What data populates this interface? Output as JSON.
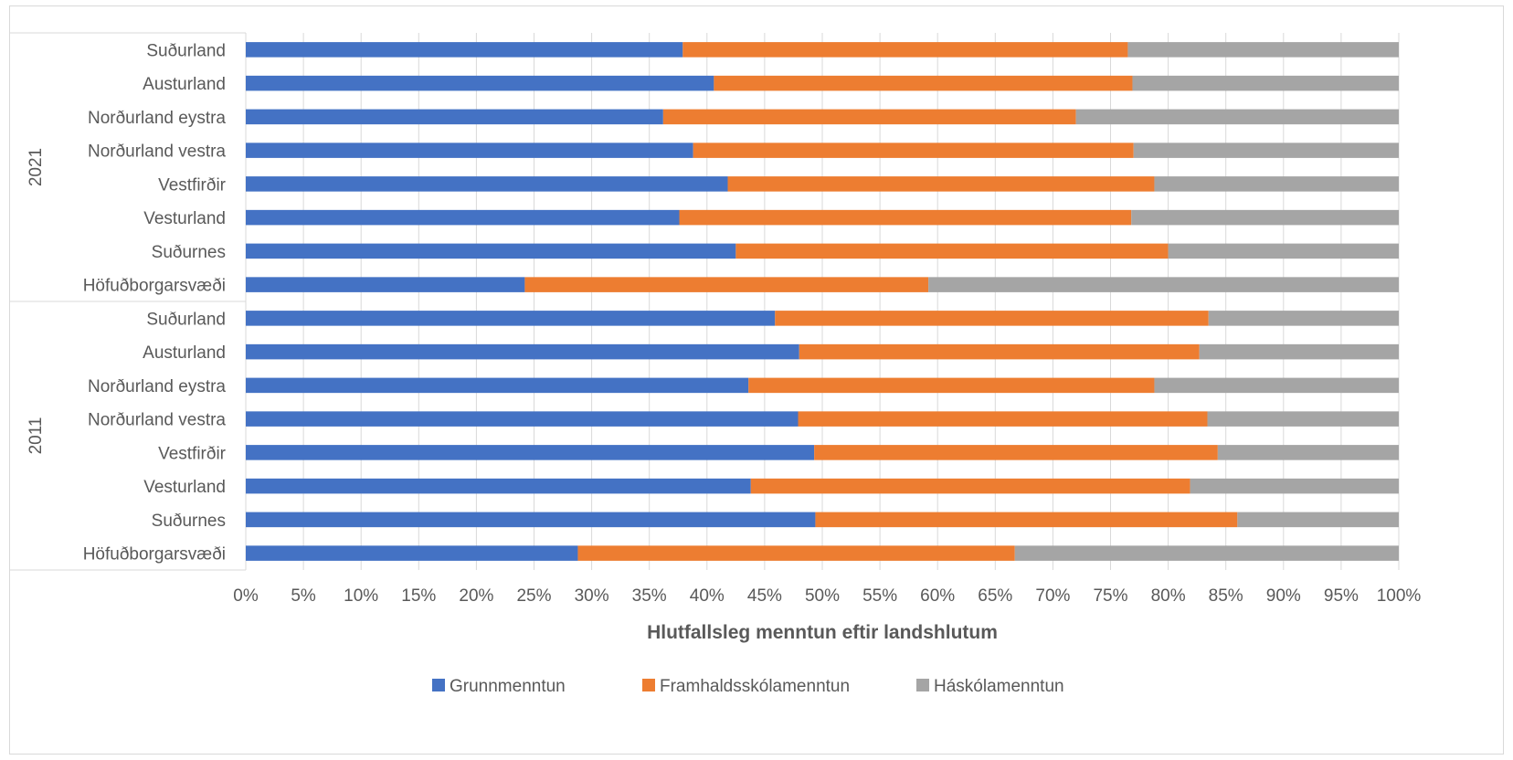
{
  "chart_data": {
    "type": "bar",
    "orientation": "horizontal",
    "stacked": true,
    "percent_stacked": true,
    "title": "",
    "xlabel": "Hlutfallsleg menntun eftir landshlutum",
    "ylabel": "",
    "xlim": [
      0,
      100
    ],
    "x_ticks": [
      "0%",
      "5%",
      "10%",
      "15%",
      "20%",
      "25%",
      "30%",
      "35%",
      "40%",
      "45%",
      "50%",
      "55%",
      "60%",
      "65%",
      "70%",
      "75%",
      "80%",
      "85%",
      "90%",
      "95%",
      "100%"
    ],
    "grid": true,
    "legend_position": "bottom",
    "groups": [
      {
        "name": "2021",
        "categories": [
          "Suðurland",
          "Austurland",
          "Norðurland eystra",
          "Norðurland vestra",
          "Vestfirðir",
          "Vesturland",
          "Suðurnes",
          "Höfuðborgarsvæði"
        ]
      },
      {
        "name": "2011",
        "categories": [
          "Suðurland",
          "Austurland",
          "Norðurland eystra",
          "Norðurland vestra",
          "Vestfirðir",
          "Vesturland",
          "Suðurnes",
          "Höfuðborgarsvæði"
        ]
      }
    ],
    "series": [
      {
        "name": "Grunnmenntun",
        "color": "#4472C4",
        "values": [
          37.9,
          40.6,
          36.2,
          38.8,
          41.8,
          37.6,
          42.5,
          24.2,
          45.9,
          48.0,
          43.6,
          47.9,
          49.3,
          43.8,
          49.4,
          28.8
        ]
      },
      {
        "name": "Framhaldsskólamenntun",
        "color": "#ED7D31",
        "values": [
          38.6,
          36.3,
          35.8,
          38.2,
          37.0,
          39.2,
          37.5,
          35.0,
          37.6,
          34.7,
          35.2,
          35.5,
          35.0,
          38.1,
          36.6,
          37.9
        ]
      },
      {
        "name": "Háskólamenntun",
        "color": "#A5A5A5",
        "values": [
          23.5,
          23.1,
          28.0,
          23.0,
          21.2,
          23.2,
          20.0,
          40.8,
          16.5,
          17.3,
          21.2,
          16.6,
          15.7,
          18.1,
          14.0,
          33.3
        ]
      }
    ]
  }
}
